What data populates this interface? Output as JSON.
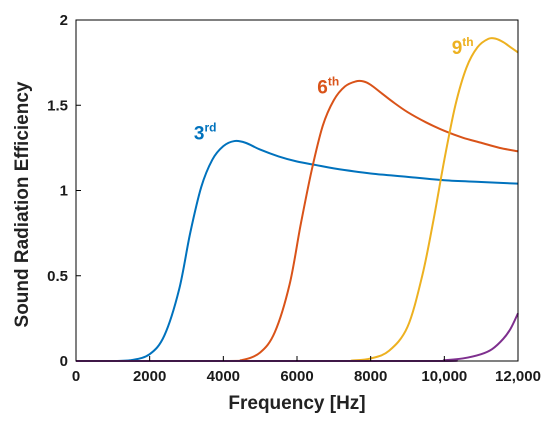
{
  "chart_data": {
    "type": "line",
    "title": "",
    "xlabel": "Frequency [Hz]",
    "ylabel": "Sound Radiation Efficiency",
    "xlim": [
      0,
      12000
    ],
    "ylim": [
      0,
      2
    ],
    "x_ticks": [
      "0",
      "2000",
      "4000",
      "6000",
      "8000",
      "10,000",
      "12,000"
    ],
    "x_tick_values": [
      0,
      2000,
      4000,
      6000,
      8000,
      10000,
      12000
    ],
    "y_ticks": [
      "0",
      "0.5",
      "1",
      "1.5",
      "2"
    ],
    "y_tick_values": [
      0,
      0.5,
      1,
      1.5,
      2
    ],
    "grid": false,
    "series": [
      {
        "name": "3rd",
        "label_main": "3",
        "label_sup": "rd",
        "color": "#0072BD",
        "label_at": [
          3200,
          1.3
        ],
        "x": [
          0,
          1000,
          1500,
          2000,
          2400,
          2800,
          3100,
          3400,
          3700,
          4000,
          4300,
          4600,
          5000,
          5500,
          6000,
          6500,
          7000,
          8000,
          9000,
          10000,
          11000,
          12000
        ],
        "y": [
          0,
          0,
          0.005,
          0.04,
          0.15,
          0.42,
          0.75,
          1.02,
          1.18,
          1.26,
          1.29,
          1.28,
          1.24,
          1.2,
          1.17,
          1.15,
          1.13,
          1.1,
          1.08,
          1.06,
          1.05,
          1.04
        ]
      },
      {
        "name": "6th",
        "label_main": "6",
        "label_sup": "th",
        "color": "#D95319",
        "label_at": [
          6550,
          1.57
        ],
        "x": [
          0,
          4000,
          4500,
          5000,
          5400,
          5800,
          6100,
          6400,
          6700,
          7000,
          7300,
          7600,
          7800,
          8000,
          8300,
          8600,
          9000,
          9500,
          10000,
          10500,
          11000,
          11500,
          12000
        ],
        "y": [
          0,
          0,
          0.005,
          0.05,
          0.17,
          0.45,
          0.8,
          1.12,
          1.38,
          1.53,
          1.61,
          1.64,
          1.64,
          1.62,
          1.57,
          1.52,
          1.46,
          1.4,
          1.35,
          1.31,
          1.28,
          1.25,
          1.23
        ]
      },
      {
        "name": "9th",
        "label_main": "9",
        "label_sup": "th",
        "color": "#EDB120",
        "label_at": [
          10200,
          1.8
        ],
        "x": [
          0,
          7000,
          7500,
          8000,
          8500,
          9000,
          9400,
          9700,
          10000,
          10300,
          10600,
          10900,
          11200,
          11400,
          11600,
          11800,
          12000
        ],
        "y": [
          0,
          0,
          0.003,
          0.015,
          0.06,
          0.2,
          0.5,
          0.82,
          1.18,
          1.5,
          1.72,
          1.84,
          1.89,
          1.89,
          1.87,
          1.84,
          1.81
        ]
      },
      {
        "name": "",
        "color": "#7E2F8E",
        "x": [
          0,
          9500,
          10000,
          10500,
          11000,
          11300,
          11600,
          11800,
          12000
        ],
        "y": [
          0,
          0,
          0.005,
          0.015,
          0.04,
          0.07,
          0.13,
          0.19,
          0.28
        ]
      }
    ]
  }
}
